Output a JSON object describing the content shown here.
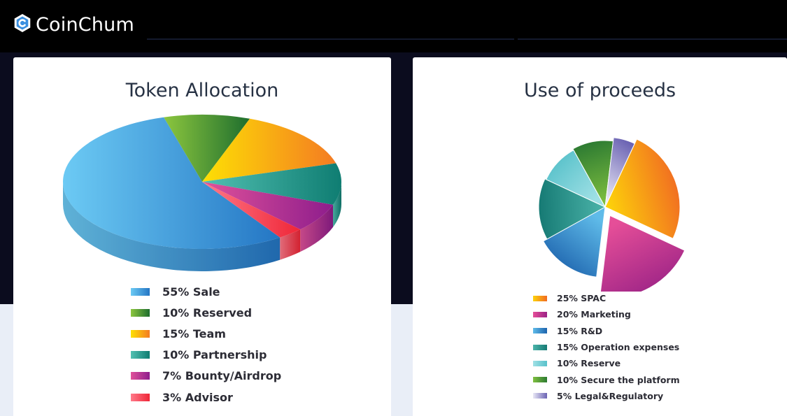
{
  "brand": {
    "name": "CoinChum",
    "logo_icon": "coinchum-logo-icon"
  },
  "colors": {
    "topbar": "#000000",
    "band": "#0b0c1e",
    "page": "#e9eef7",
    "card": "#ffffff",
    "title": "#273244"
  },
  "chart_data": [
    {
      "type": "pie",
      "title": "Token Allocation",
      "style": "3d",
      "legend_position": "bottom",
      "slices": [
        {
          "label": "55% Sale",
          "value": 55,
          "color_light": "#6ccaf4",
          "color_dark": "#2476c4"
        },
        {
          "label": "10% Reserved",
          "value": 10,
          "color_light": "#8cc63e",
          "color_dark": "#1e6e2e"
        },
        {
          "label": "15% Team",
          "value": 15,
          "color_light": "#fde004",
          "color_dark": "#f47b22"
        },
        {
          "label": "10% Partnership",
          "value": 10,
          "color_light": "#52c0b2",
          "color_dark": "#0f7d72"
        },
        {
          "label": "7% Bounty/Airdrop",
          "value": 7,
          "color_light": "#e0529a",
          "color_dark": "#8e1d8c"
        },
        {
          "label": "3% Advisor",
          "value": 3,
          "color_light": "#ff7a8a",
          "color_dark": "#ef2637"
        }
      ]
    },
    {
      "type": "pie",
      "title": "Use of proceeds",
      "style": "exploded",
      "legend_position": "bottom",
      "slices": [
        {
          "label": "25% SPAC",
          "value": 25,
          "color_light": "#fdd20a",
          "color_dark": "#f16a22"
        },
        {
          "label": "20% Marketing",
          "value": 20,
          "color_light": "#e54e98",
          "color_dark": "#9b2386"
        },
        {
          "label": "15% R&D",
          "value": 15,
          "color_light": "#5fbbe9",
          "color_dark": "#1d63ad"
        },
        {
          "label": "15% Operation expenses",
          "value": 15,
          "color_light": "#4cb4aa",
          "color_dark": "#167a74"
        },
        {
          "label": "10% Reserve",
          "value": 10,
          "color_light": "#9fe0e5",
          "color_dark": "#58c1ca"
        },
        {
          "label": "10% Secure the platform",
          "value": 10,
          "color_light": "#7fbf3f",
          "color_dark": "#2c7a32"
        },
        {
          "label": "5% Legal&Regulatory",
          "value": 5,
          "color_light": "#e9e8f6",
          "color_dark": "#6b63b3"
        }
      ]
    }
  ]
}
